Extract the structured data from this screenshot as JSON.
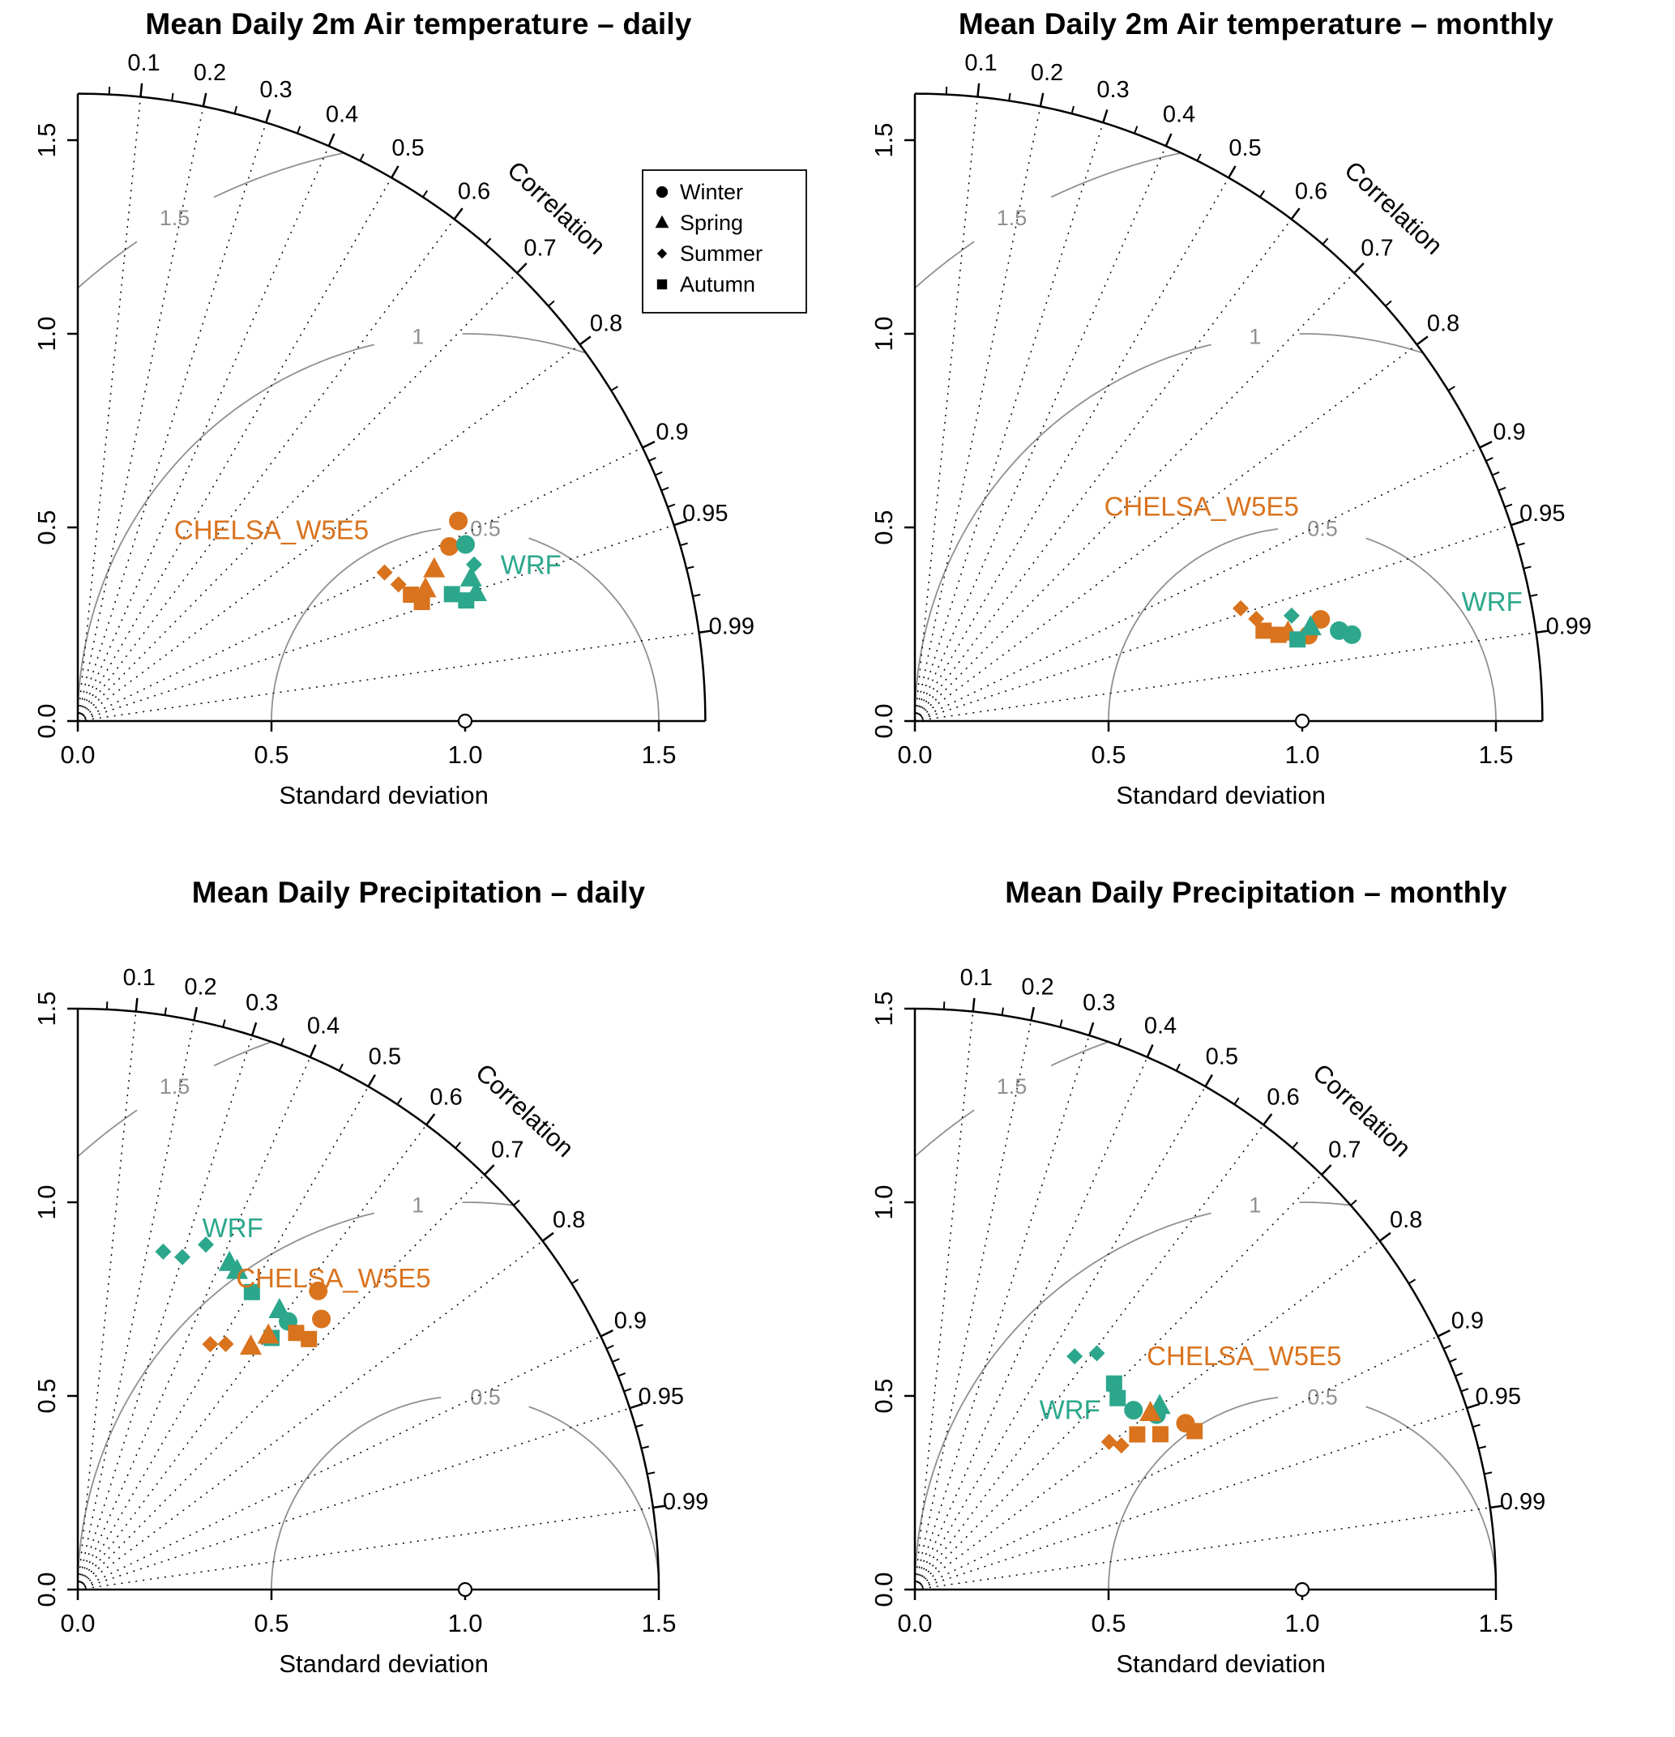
{
  "figure": {
    "background": "#ffffff"
  },
  "colors": {
    "chelsa": "#d9731e",
    "wrf": "#2ca78c",
    "gray_arc": "#909090",
    "axis": "#000000"
  },
  "legend": {
    "items": [
      {
        "symbol": "circle",
        "label": "Winter"
      },
      {
        "symbol": "triangle",
        "label": "Spring"
      },
      {
        "symbol": "diamond",
        "label": "Summer"
      },
      {
        "symbol": "square",
        "label": "Autumn"
      }
    ]
  },
  "axes": {
    "xlabel": "Standard deviation",
    "corr_label": "Correlation",
    "sd_ticks": [
      {
        "v": 0,
        "label": "0.0"
      },
      {
        "v": 0.5,
        "label": "0.5"
      },
      {
        "v": 1,
        "label": "1.0"
      },
      {
        "v": 1.5,
        "label": "1.5"
      }
    ],
    "corr_major": [
      {
        "v": 0.1,
        "label": "0.1"
      },
      {
        "v": 0.2,
        "label": "0.2"
      },
      {
        "v": 0.3,
        "label": "0.3"
      },
      {
        "v": 0.4,
        "label": "0.4"
      },
      {
        "v": 0.5,
        "label": "0.5"
      },
      {
        "v": 0.6,
        "label": "0.6"
      },
      {
        "v": 0.7,
        "label": "0.7"
      },
      {
        "v": 0.8,
        "label": "0.8"
      },
      {
        "v": 0.9,
        "label": "0.9"
      },
      {
        "v": 0.95,
        "label": "0.95"
      },
      {
        "v": 0.99,
        "label": "0.99"
      }
    ],
    "corr_minor": [
      0.05,
      0.15,
      0.25,
      0.35,
      0.45,
      0.55,
      0.65,
      0.75,
      0.85,
      0.91,
      0.92,
      0.93,
      0.94,
      0.96,
      0.97,
      0.98
    ],
    "rms_arcs": [
      {
        "r": 0.5,
        "label": "0.5",
        "label_angle_deg": 84
      },
      {
        "r": 1,
        "label": "1",
        "label_angle_deg": 97
      },
      {
        "r": 1.5,
        "label": "1.5",
        "label_angle_deg": 120
      }
    ],
    "reference_std": 1
  },
  "chart_data": [
    {
      "id": "temp-daily",
      "type": "taylor",
      "title": "Mean Daily 2m Air temperature – daily",
      "xlabel": "Standard deviation",
      "axis_max": 1.62,
      "show_legend": true,
      "annotations": [
        {
          "text": "CHELSA_W5E5",
          "color_key": "chelsa",
          "x": 0.5,
          "y": 0.47
        },
        {
          "text": "WRF",
          "color_key": "wrf",
          "x": 1.17,
          "y": 0.38
        }
      ],
      "series": [
        {
          "name": "CHELSA_W5E5",
          "color_key": "chelsa",
          "points": [
            {
              "season": "Winter",
              "std": 1.11,
              "corr": 0.885
            },
            {
              "season": "Winter",
              "std": 1.06,
              "corr": 0.905
            },
            {
              "season": "Spring",
              "std": 1.0,
              "corr": 0.92
            },
            {
              "season": "Spring",
              "std": 0.96,
              "corr": 0.935
            },
            {
              "season": "Summer",
              "std": 0.88,
              "corr": 0.9
            },
            {
              "season": "Summer",
              "std": 0.9,
              "corr": 0.92
            },
            {
              "season": "Autumn",
              "std": 0.92,
              "corr": 0.935
            },
            {
              "season": "Autumn",
              "std": 0.94,
              "corr": 0.945
            }
          ]
        },
        {
          "name": "WRF",
          "color_key": "wrf",
          "points": [
            {
              "season": "Winter",
              "std": 1.1,
              "corr": 0.91
            },
            {
              "season": "Spring",
              "std": 1.08,
              "corr": 0.94
            },
            {
              "season": "Spring",
              "std": 1.08,
              "corr": 0.952
            },
            {
              "season": "Summer",
              "std": 1.1,
              "corr": 0.93
            },
            {
              "season": "Autumn",
              "std": 1.02,
              "corr": 0.947
            },
            {
              "season": "Autumn",
              "std": 1.05,
              "corr": 0.955
            }
          ]
        }
      ]
    },
    {
      "id": "temp-monthly",
      "type": "taylor",
      "title": "Mean Daily 2m Air temperature – monthly",
      "xlabel": "Standard deviation",
      "axis_max": 1.62,
      "show_legend": false,
      "annotations": [
        {
          "text": "CHELSA_W5E5",
          "color_key": "chelsa",
          "x": 0.74,
          "y": 0.53
        },
        {
          "text": "WRF",
          "color_key": "wrf",
          "x": 1.49,
          "y": 0.285
        }
      ],
      "series": [
        {
          "name": "CHELSA_W5E5",
          "color_key": "chelsa",
          "points": [
            {
              "season": "Summer",
              "std": 0.89,
              "corr": 0.945
            },
            {
              "season": "Summer",
              "std": 0.92,
              "corr": 0.958
            },
            {
              "season": "Autumn",
              "std": 0.93,
              "corr": 0.968
            },
            {
              "season": "Autumn",
              "std": 0.965,
              "corr": 0.973
            },
            {
              "season": "Spring",
              "std": 0.99,
              "corr": 0.973
            },
            {
              "season": "Winter",
              "std": 1.08,
              "corr": 0.97
            },
            {
              "season": "Winter",
              "std": 1.04,
              "corr": 0.977
            }
          ]
        },
        {
          "name": "WRF",
          "color_key": "wrf",
          "points": [
            {
              "season": "Summer",
              "std": 1.01,
              "corr": 0.963
            },
            {
              "season": "Spring",
              "std": 1.05,
              "corr": 0.973
            },
            {
              "season": "Winter",
              "std": 1.12,
              "corr": 0.978
            },
            {
              "season": "Winter",
              "std": 1.15,
              "corr": 0.981
            },
            {
              "season": "Autumn",
              "std": 1.01,
              "corr": 0.978
            }
          ]
        }
      ]
    },
    {
      "id": "precip-daily",
      "type": "taylor",
      "title": "Mean Daily Precipitation – daily",
      "xlabel": "Standard deviation",
      "axis_max": 1.5,
      "show_legend": false,
      "annotations": [
        {
          "text": "WRF",
          "color_key": "wrf",
          "x": 0.4,
          "y": 0.91
        },
        {
          "text": "CHELSA_W5E5",
          "color_key": "chelsa",
          "x": 0.66,
          "y": 0.78
        }
      ],
      "series": [
        {
          "name": "WRF",
          "color_key": "wrf",
          "points": [
            {
              "season": "Summer",
              "std": 0.9,
              "corr": 0.245
            },
            {
              "season": "Summer",
              "std": 0.9,
              "corr": 0.3
            },
            {
              "season": "Summer",
              "std": 0.95,
              "corr": 0.348
            },
            {
              "season": "Spring",
              "std": 0.93,
              "corr": 0.421
            },
            {
              "season": "Spring",
              "std": 0.92,
              "corr": 0.447
            },
            {
              "season": "Spring",
              "std": 0.89,
              "corr": 0.585
            },
            {
              "season": "Autumn",
              "std": 0.89,
              "corr": 0.505
            },
            {
              "season": "Autumn",
              "std": 0.82,
              "corr": 0.61
            },
            {
              "season": "Winter",
              "std": 0.88,
              "corr": 0.617
            }
          ]
        },
        {
          "name": "CHELSA_W5E5",
          "color_key": "chelsa",
          "points": [
            {
              "season": "Summer",
              "std": 0.72,
              "corr": 0.475
            },
            {
              "season": "Summer",
              "std": 0.74,
              "corr": 0.516
            },
            {
              "season": "Spring",
              "std": 0.77,
              "corr": 0.58
            },
            {
              "season": "Spring",
              "std": 0.82,
              "corr": 0.6
            },
            {
              "season": "Autumn",
              "std": 0.87,
              "corr": 0.648
            },
            {
              "season": "Autumn",
              "std": 0.88,
              "corr": 0.678
            },
            {
              "season": "Winter",
              "std": 0.99,
              "corr": 0.627
            },
            {
              "season": "Winter",
              "std": 0.94,
              "corr": 0.669
            }
          ]
        }
      ]
    },
    {
      "id": "precip-monthly",
      "type": "taylor",
      "title": "Mean Daily Precipitation – monthly",
      "xlabel": "Standard deviation",
      "axis_max": 1.5,
      "show_legend": false,
      "annotations": [
        {
          "text": "WRF",
          "color_key": "wrf",
          "x": 0.4,
          "y": 0.44
        },
        {
          "text": "CHELSA_W5E5",
          "color_key": "chelsa",
          "x": 0.85,
          "y": 0.58
        }
      ],
      "series": [
        {
          "name": "WRF",
          "color_key": "wrf",
          "points": [
            {
              "season": "Summer",
              "std": 0.73,
              "corr": 0.565
            },
            {
              "season": "Summer",
              "std": 0.77,
              "corr": 0.61
            },
            {
              "season": "Autumn",
              "std": 0.74,
              "corr": 0.695
            },
            {
              "season": "Autumn",
              "std": 0.72,
              "corr": 0.727
            },
            {
              "season": "Winter",
              "std": 0.73,
              "corr": 0.773
            },
            {
              "season": "Winter",
              "std": 0.77,
              "corr": 0.81
            },
            {
              "season": "Spring",
              "std": 0.79,
              "corr": 0.8
            }
          ]
        },
        {
          "name": "CHELSA_W5E5",
          "color_key": "chelsa",
          "points": [
            {
              "season": "Summer",
              "std": 0.63,
              "corr": 0.796
            },
            {
              "season": "Summer",
              "std": 0.65,
              "corr": 0.82
            },
            {
              "season": "Autumn",
              "std": 0.7,
              "corr": 0.82
            },
            {
              "season": "Autumn",
              "std": 0.75,
              "corr": 0.845
            },
            {
              "season": "Autumn",
              "std": 0.83,
              "corr": 0.87
            },
            {
              "season": "Winter",
              "std": 0.82,
              "corr": 0.852
            },
            {
              "season": "Spring",
              "std": 0.76,
              "corr": 0.8
            }
          ]
        }
      ]
    }
  ]
}
